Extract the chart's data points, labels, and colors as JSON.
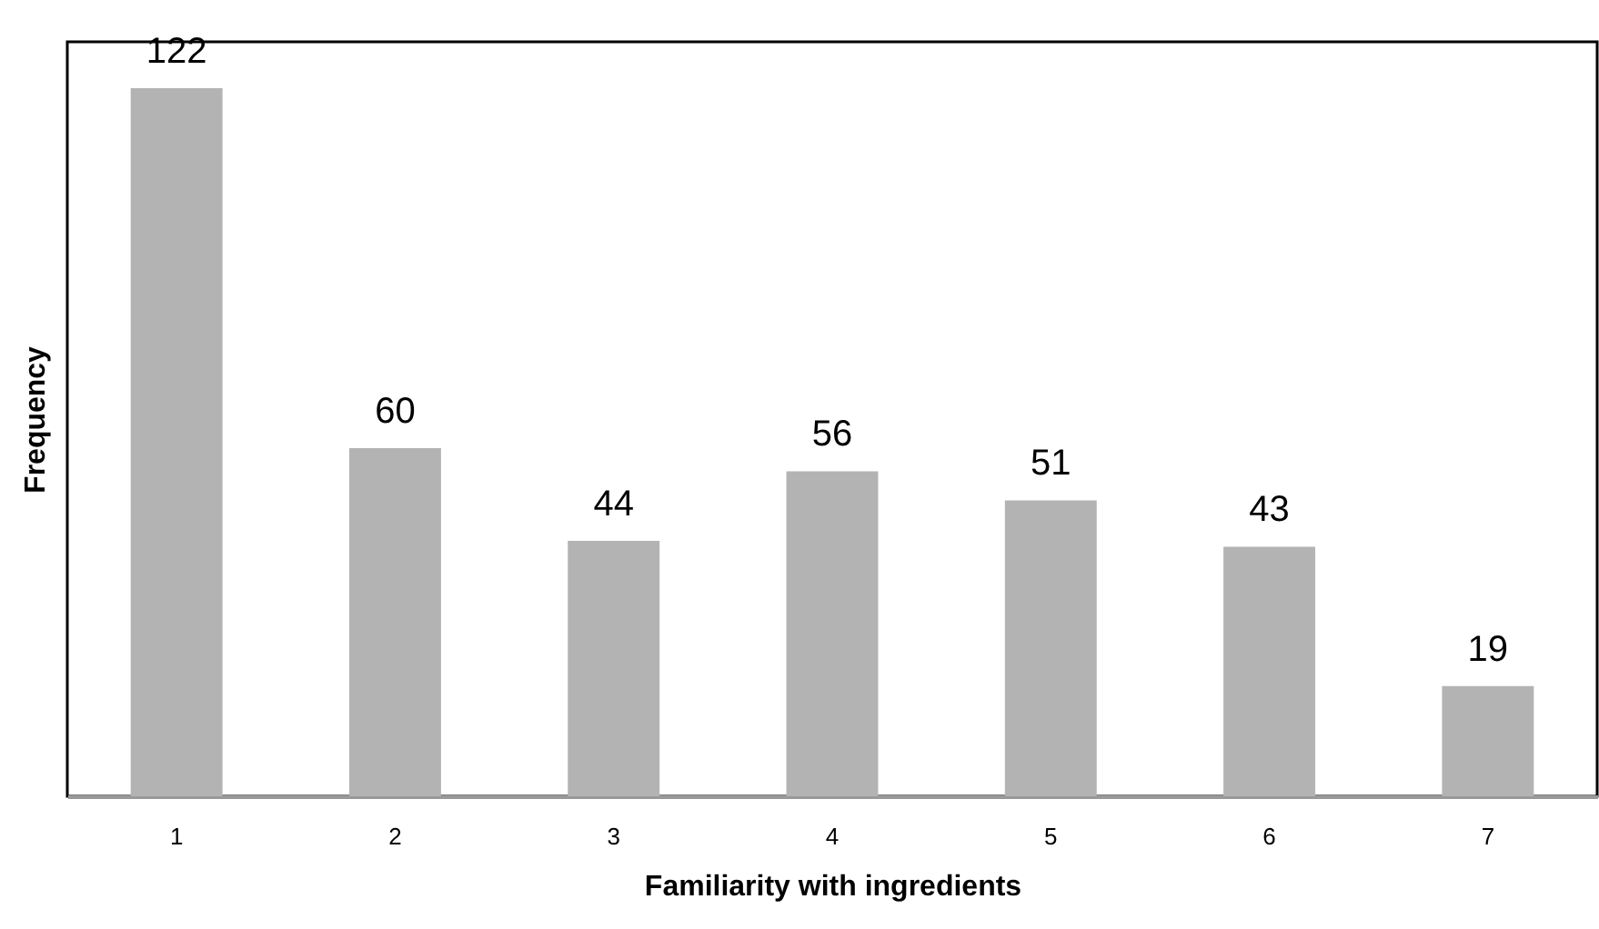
{
  "chart_data": {
    "type": "bar",
    "xlabel": "Familiarity with ingredients",
    "ylabel": "Frequency",
    "categories": [
      "1",
      "2",
      "3",
      "4",
      "5",
      "6",
      "7"
    ],
    "values": [
      122,
      60,
      44,
      56,
      51,
      43,
      19
    ],
    "color": "#b3b3b3",
    "data_labels": true
  }
}
